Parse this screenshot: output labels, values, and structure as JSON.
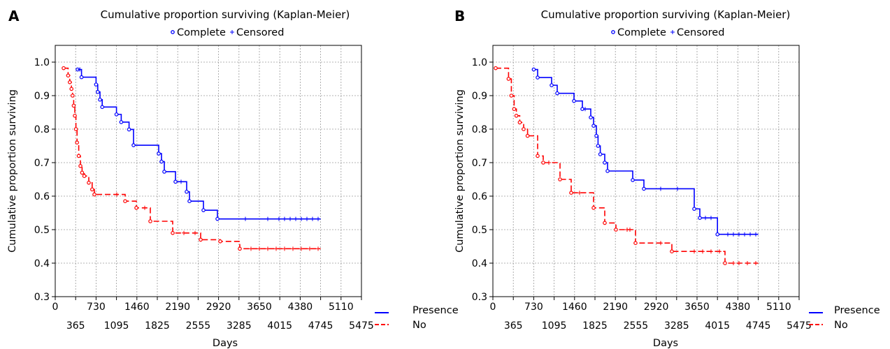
{
  "chart_data": [
    {
      "panel": "A",
      "type": "line",
      "title": "Cumulative proportion surviving (Kaplan-Meier)",
      "marker_legend": [
        "Complete",
        "Censored"
      ],
      "xlabel": "Days",
      "ylabel": "Cumulative proportion surviving",
      "xlim": [
        0,
        5475
      ],
      "ylim": [
        0.3,
        1.05
      ],
      "x_ticks_top": [
        "0",
        "730",
        "1460",
        "2190",
        "2920",
        "3650",
        "4380",
        "5110"
      ],
      "x_ticks_bottom": [
        "365",
        "1095",
        "1825",
        "2555",
        "3285",
        "4015",
        "4745",
        "5475"
      ],
      "y_ticks": [
        "0.3",
        "0.4",
        "0.5",
        "0.6",
        "0.7",
        "0.8",
        "0.9",
        "1.0"
      ],
      "grid": true,
      "legend_position": "bottom-right",
      "series": [
        {
          "name": "Presence",
          "color": "#0000ff",
          "style": "solid",
          "x": [
            400,
            470,
            730,
            760,
            800,
            840,
            1095,
            1180,
            1320,
            1400,
            1850,
            1900,
            1950,
            2150,
            2350,
            2400,
            2650,
            2900,
            4745
          ],
          "y": [
            0.978,
            0.955,
            0.933,
            0.911,
            0.888,
            0.866,
            0.844,
            0.821,
            0.799,
            0.752,
            0.727,
            0.703,
            0.673,
            0.643,
            0.613,
            0.585,
            0.558,
            0.532,
            0.532
          ],
          "censored_x": [
            440,
            2250,
            3400,
            3800,
            4000,
            4100,
            4200,
            4300,
            4400,
            4500,
            4600,
            4700
          ]
        },
        {
          "name": "No",
          "color": "#ff0000",
          "style": "dashed",
          "x": [
            150,
            230,
            260,
            290,
            310,
            330,
            350,
            370,
            390,
            420,
            450,
            480,
            520,
            600,
            660,
            700,
            1250,
            1450,
            1700,
            2100,
            2600,
            2950,
            3300,
            4745
          ],
          "y": [
            0.982,
            0.96,
            0.94,
            0.92,
            0.9,
            0.87,
            0.84,
            0.8,
            0.76,
            0.72,
            0.69,
            0.67,
            0.66,
            0.64,
            0.62,
            0.605,
            0.585,
            0.565,
            0.525,
            0.49,
            0.47,
            0.465,
            0.443,
            0.443
          ],
          "censored_x": [
            1100,
            1600,
            2300,
            2500,
            3500,
            3650,
            3800,
            3950,
            4100,
            4250,
            4400,
            4550,
            4700
          ]
        }
      ]
    },
    {
      "panel": "B",
      "type": "line",
      "title": "Cumulative proportion surviving (Kaplan-Meier)",
      "marker_legend": [
        "Complete",
        "Censored"
      ],
      "xlabel": "Days",
      "ylabel": "Cumulative proportion surviving",
      "xlim": [
        0,
        5475
      ],
      "ylim": [
        0.3,
        1.05
      ],
      "x_ticks_top": [
        "0",
        "730",
        "1460",
        "2190",
        "2920",
        "3650",
        "4380",
        "5110"
      ],
      "x_ticks_bottom": [
        "365",
        "1095",
        "1825",
        "2555",
        "3285",
        "4015",
        "4745",
        "5475"
      ],
      "y_ticks": [
        "0.3",
        "0.4",
        "0.5",
        "0.6",
        "0.7",
        "0.8",
        "0.9",
        "1.0"
      ],
      "grid": true,
      "legend_position": "bottom-right",
      "series": [
        {
          "name": "Presence",
          "color": "#0000ff",
          "style": "solid",
          "x": [
            730,
            800,
            1050,
            1150,
            1450,
            1600,
            1750,
            1800,
            1850,
            1880,
            1920,
            2000,
            2050,
            2500,
            2700,
            3600,
            3700,
            4015,
            4745
          ],
          "y": [
            0.978,
            0.954,
            0.931,
            0.907,
            0.884,
            0.86,
            0.835,
            0.81,
            0.78,
            0.75,
            0.725,
            0.7,
            0.675,
            0.648,
            0.622,
            0.562,
            0.535,
            0.486,
            0.486
          ],
          "censored_x": [
            1650,
            3000,
            3300,
            3800,
            3900,
            4200,
            4300,
            4400,
            4500,
            4600,
            4700
          ]
        },
        {
          "name": "No",
          "color": "#ff0000",
          "style": "dashed",
          "x": [
            50,
            280,
            330,
            380,
            420,
            480,
            550,
            620,
            800,
            900,
            1200,
            1400,
            1800,
            2000,
            2200,
            2550,
            3200,
            4150,
            4745
          ],
          "y": [
            0.982,
            0.95,
            0.9,
            0.86,
            0.84,
            0.82,
            0.8,
            0.78,
            0.72,
            0.7,
            0.65,
            0.61,
            0.565,
            0.52,
            0.5,
            0.46,
            0.435,
            0.4,
            0.4
          ],
          "censored_x": [
            1000,
            1550,
            2400,
            2450,
            3000,
            3600,
            3750,
            3900,
            4050,
            4300,
            4400,
            4550,
            4700
          ]
        }
      ]
    }
  ]
}
